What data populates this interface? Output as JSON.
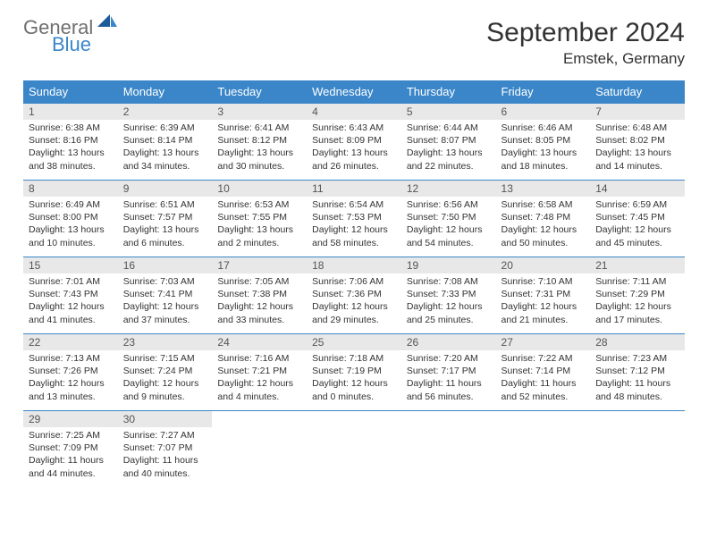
{
  "logo": {
    "general": "General",
    "blue": "Blue"
  },
  "title": "September 2024",
  "location": "Emstek, Germany",
  "colors": {
    "header_bg": "#3a86c8",
    "daybar_bg": "#e8e8e8",
    "border": "#3a86c8"
  },
  "weekdays": [
    "Sunday",
    "Monday",
    "Tuesday",
    "Wednesday",
    "Thursday",
    "Friday",
    "Saturday"
  ],
  "weeks": [
    [
      {
        "n": "1",
        "sr": "Sunrise: 6:38 AM",
        "ss": "Sunset: 8:16 PM",
        "d1": "Daylight: 13 hours",
        "d2": "and 38 minutes."
      },
      {
        "n": "2",
        "sr": "Sunrise: 6:39 AM",
        "ss": "Sunset: 8:14 PM",
        "d1": "Daylight: 13 hours",
        "d2": "and 34 minutes."
      },
      {
        "n": "3",
        "sr": "Sunrise: 6:41 AM",
        "ss": "Sunset: 8:12 PM",
        "d1": "Daylight: 13 hours",
        "d2": "and 30 minutes."
      },
      {
        "n": "4",
        "sr": "Sunrise: 6:43 AM",
        "ss": "Sunset: 8:09 PM",
        "d1": "Daylight: 13 hours",
        "d2": "and 26 minutes."
      },
      {
        "n": "5",
        "sr": "Sunrise: 6:44 AM",
        "ss": "Sunset: 8:07 PM",
        "d1": "Daylight: 13 hours",
        "d2": "and 22 minutes."
      },
      {
        "n": "6",
        "sr": "Sunrise: 6:46 AM",
        "ss": "Sunset: 8:05 PM",
        "d1": "Daylight: 13 hours",
        "d2": "and 18 minutes."
      },
      {
        "n": "7",
        "sr": "Sunrise: 6:48 AM",
        "ss": "Sunset: 8:02 PM",
        "d1": "Daylight: 13 hours",
        "d2": "and 14 minutes."
      }
    ],
    [
      {
        "n": "8",
        "sr": "Sunrise: 6:49 AM",
        "ss": "Sunset: 8:00 PM",
        "d1": "Daylight: 13 hours",
        "d2": "and 10 minutes."
      },
      {
        "n": "9",
        "sr": "Sunrise: 6:51 AM",
        "ss": "Sunset: 7:57 PM",
        "d1": "Daylight: 13 hours",
        "d2": "and 6 minutes."
      },
      {
        "n": "10",
        "sr": "Sunrise: 6:53 AM",
        "ss": "Sunset: 7:55 PM",
        "d1": "Daylight: 13 hours",
        "d2": "and 2 minutes."
      },
      {
        "n": "11",
        "sr": "Sunrise: 6:54 AM",
        "ss": "Sunset: 7:53 PM",
        "d1": "Daylight: 12 hours",
        "d2": "and 58 minutes."
      },
      {
        "n": "12",
        "sr": "Sunrise: 6:56 AM",
        "ss": "Sunset: 7:50 PM",
        "d1": "Daylight: 12 hours",
        "d2": "and 54 minutes."
      },
      {
        "n": "13",
        "sr": "Sunrise: 6:58 AM",
        "ss": "Sunset: 7:48 PM",
        "d1": "Daylight: 12 hours",
        "d2": "and 50 minutes."
      },
      {
        "n": "14",
        "sr": "Sunrise: 6:59 AM",
        "ss": "Sunset: 7:45 PM",
        "d1": "Daylight: 12 hours",
        "d2": "and 45 minutes."
      }
    ],
    [
      {
        "n": "15",
        "sr": "Sunrise: 7:01 AM",
        "ss": "Sunset: 7:43 PM",
        "d1": "Daylight: 12 hours",
        "d2": "and 41 minutes."
      },
      {
        "n": "16",
        "sr": "Sunrise: 7:03 AM",
        "ss": "Sunset: 7:41 PM",
        "d1": "Daylight: 12 hours",
        "d2": "and 37 minutes."
      },
      {
        "n": "17",
        "sr": "Sunrise: 7:05 AM",
        "ss": "Sunset: 7:38 PM",
        "d1": "Daylight: 12 hours",
        "d2": "and 33 minutes."
      },
      {
        "n": "18",
        "sr": "Sunrise: 7:06 AM",
        "ss": "Sunset: 7:36 PM",
        "d1": "Daylight: 12 hours",
        "d2": "and 29 minutes."
      },
      {
        "n": "19",
        "sr": "Sunrise: 7:08 AM",
        "ss": "Sunset: 7:33 PM",
        "d1": "Daylight: 12 hours",
        "d2": "and 25 minutes."
      },
      {
        "n": "20",
        "sr": "Sunrise: 7:10 AM",
        "ss": "Sunset: 7:31 PM",
        "d1": "Daylight: 12 hours",
        "d2": "and 21 minutes."
      },
      {
        "n": "21",
        "sr": "Sunrise: 7:11 AM",
        "ss": "Sunset: 7:29 PM",
        "d1": "Daylight: 12 hours",
        "d2": "and 17 minutes."
      }
    ],
    [
      {
        "n": "22",
        "sr": "Sunrise: 7:13 AM",
        "ss": "Sunset: 7:26 PM",
        "d1": "Daylight: 12 hours",
        "d2": "and 13 minutes."
      },
      {
        "n": "23",
        "sr": "Sunrise: 7:15 AM",
        "ss": "Sunset: 7:24 PM",
        "d1": "Daylight: 12 hours",
        "d2": "and 9 minutes."
      },
      {
        "n": "24",
        "sr": "Sunrise: 7:16 AM",
        "ss": "Sunset: 7:21 PM",
        "d1": "Daylight: 12 hours",
        "d2": "and 4 minutes."
      },
      {
        "n": "25",
        "sr": "Sunrise: 7:18 AM",
        "ss": "Sunset: 7:19 PM",
        "d1": "Daylight: 12 hours",
        "d2": "and 0 minutes."
      },
      {
        "n": "26",
        "sr": "Sunrise: 7:20 AM",
        "ss": "Sunset: 7:17 PM",
        "d1": "Daylight: 11 hours",
        "d2": "and 56 minutes."
      },
      {
        "n": "27",
        "sr": "Sunrise: 7:22 AM",
        "ss": "Sunset: 7:14 PM",
        "d1": "Daylight: 11 hours",
        "d2": "and 52 minutes."
      },
      {
        "n": "28",
        "sr": "Sunrise: 7:23 AM",
        "ss": "Sunset: 7:12 PM",
        "d1": "Daylight: 11 hours",
        "d2": "and 48 minutes."
      }
    ],
    [
      {
        "n": "29",
        "sr": "Sunrise: 7:25 AM",
        "ss": "Sunset: 7:09 PM",
        "d1": "Daylight: 11 hours",
        "d2": "and 44 minutes."
      },
      {
        "n": "30",
        "sr": "Sunrise: 7:27 AM",
        "ss": "Sunset: 7:07 PM",
        "d1": "Daylight: 11 hours",
        "d2": "and 40 minutes."
      },
      {
        "empty": true
      },
      {
        "empty": true
      },
      {
        "empty": true
      },
      {
        "empty": true
      },
      {
        "empty": true
      }
    ]
  ]
}
